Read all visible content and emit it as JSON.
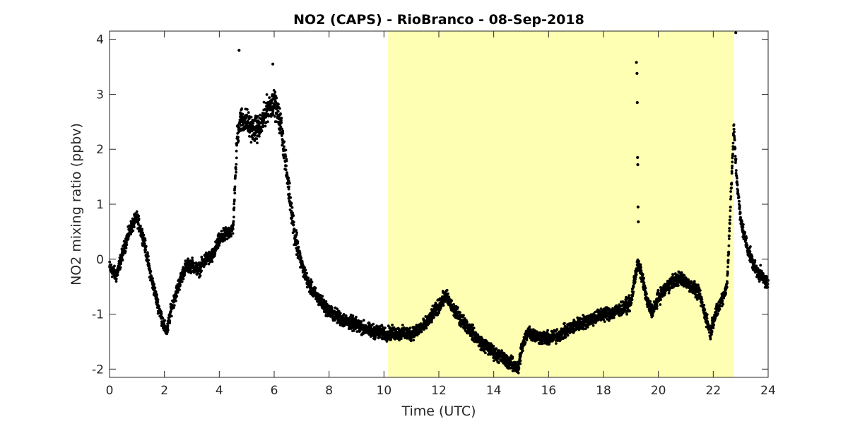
{
  "chart_data": {
    "type": "scatter",
    "title": "NO2 (CAPS) - RioBranco - 08-Sep-2018",
    "xlabel": "Time (UTC)",
    "ylabel": "NO2 mixing ratio (ppbv)",
    "xlim": [
      0,
      24
    ],
    "ylim": [
      -2.15,
      4.15
    ],
    "xticks": [
      0,
      2,
      4,
      6,
      8,
      10,
      12,
      14,
      16,
      18,
      20,
      22,
      24
    ],
    "xtick_labels": [
      "0",
      "2",
      "4",
      "6",
      "8",
      "10",
      "12",
      "14",
      "16",
      "18",
      "20",
      "22",
      "24"
    ],
    "yticks": [
      -2,
      -1,
      0,
      1,
      2,
      3,
      4
    ],
    "ytick_labels": [
      "-2",
      "-1",
      "0",
      "1",
      "2",
      "3",
      "4"
    ],
    "grid": false,
    "shaded_region": {
      "x_start": 10.15,
      "x_end": 22.75,
      "color": "#ffffb3"
    },
    "marker_color": "#000000",
    "series": [
      {
        "x": [
          0.0,
          0.25,
          0.5,
          0.75,
          1.0,
          1.25,
          1.5,
          1.75,
          2.0,
          2.1,
          2.25,
          2.5,
          2.75,
          3.0,
          3.25,
          3.5,
          3.75,
          4.0,
          4.25,
          4.5,
          4.65,
          4.75,
          5.0,
          5.25,
          5.5,
          5.75,
          6.0,
          6.25,
          6.5,
          6.75,
          7.0,
          7.25,
          7.5,
          7.75,
          8.0,
          8.5,
          9.0,
          9.5,
          10.0,
          10.5,
          11.0,
          11.5,
          12.0,
          12.25,
          12.5,
          13.0,
          13.5,
          14.0,
          14.5,
          14.9,
          15.0,
          15.25,
          15.5,
          16.0,
          16.5,
          17.0,
          17.5,
          18.0,
          18.5,
          19.0,
          19.15,
          19.25,
          19.4,
          19.6,
          19.8,
          20.0,
          20.5,
          20.75,
          21.0,
          21.5,
          21.9,
          22.0,
          22.5,
          22.75,
          22.85,
          23.0,
          23.25,
          23.5,
          24.0
        ],
        "y": [
          -0.15,
          -0.3,
          0.15,
          0.55,
          0.75,
          0.35,
          -0.3,
          -0.8,
          -1.25,
          -1.3,
          -0.9,
          -0.5,
          -0.15,
          -0.1,
          -0.2,
          0.0,
          0.05,
          0.35,
          0.45,
          0.55,
          2.2,
          2.55,
          2.5,
          2.35,
          2.4,
          2.75,
          2.85,
          2.45,
          1.4,
          0.45,
          -0.1,
          -0.45,
          -0.65,
          -0.8,
          -0.95,
          -1.1,
          -1.2,
          -1.3,
          -1.35,
          -1.35,
          -1.35,
          -1.2,
          -0.85,
          -0.65,
          -0.9,
          -1.2,
          -1.5,
          -1.7,
          -1.85,
          -2.0,
          -1.65,
          -1.3,
          -1.4,
          -1.45,
          -1.35,
          -1.2,
          -1.1,
          -1.0,
          -0.95,
          -0.8,
          -0.3,
          -0.1,
          -0.3,
          -0.8,
          -0.95,
          -0.7,
          -0.4,
          -0.35,
          -0.4,
          -0.65,
          -1.35,
          -1.1,
          -0.5,
          2.4,
          1.5,
          0.7,
          0.2,
          -0.15,
          -0.45
        ],
        "outliers": [
          {
            "x": 19.2,
            "y": 3.58
          },
          {
            "x": 19.22,
            "y": 3.38
          },
          {
            "x": 19.23,
            "y": 2.85
          },
          {
            "x": 19.24,
            "y": 1.85
          },
          {
            "x": 19.25,
            "y": 1.72
          },
          {
            "x": 19.26,
            "y": 0.95
          },
          {
            "x": 19.27,
            "y": 0.68
          },
          {
            "x": 22.82,
            "y": 4.12
          },
          {
            "x": 4.72,
            "y": 3.8
          },
          {
            "x": 5.95,
            "y": 3.55
          }
        ]
      }
    ]
  }
}
